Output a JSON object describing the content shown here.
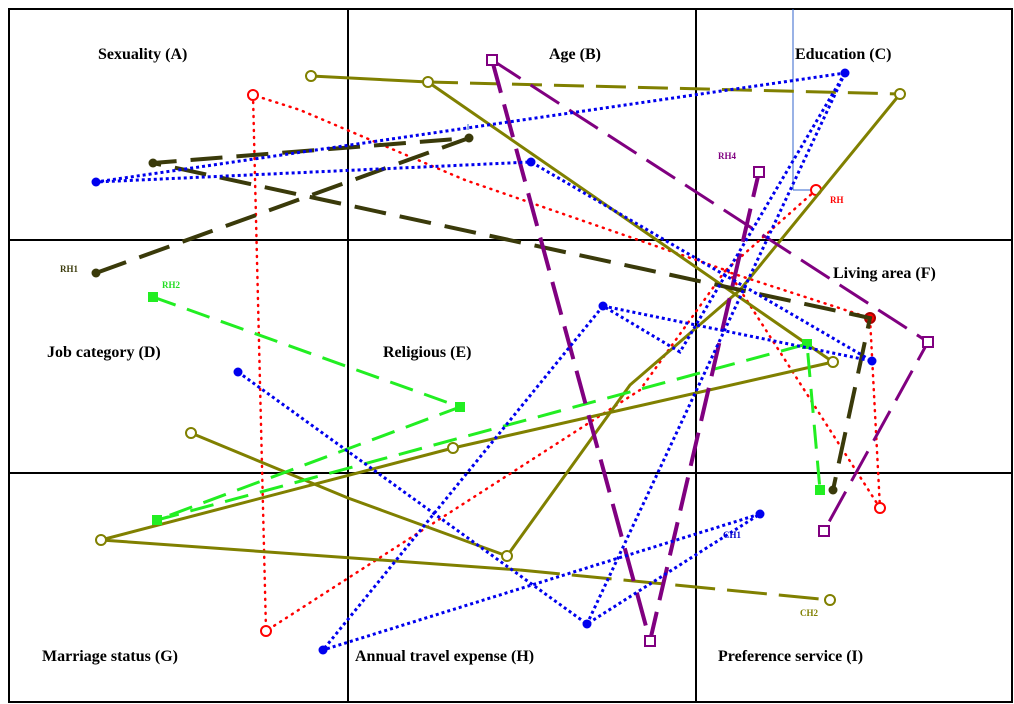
{
  "cells": [
    {
      "id": "A",
      "label": "Sexuality (A)"
    },
    {
      "id": "B",
      "label": "Age (B)"
    },
    {
      "id": "C",
      "label": "Education (C)"
    },
    {
      "id": "D",
      "label": "Job category (D)"
    },
    {
      "id": "E",
      "label": "Religious (E)"
    },
    {
      "id": "F",
      "label": "Living area (F)"
    },
    {
      "id": "G",
      "label": "Marriage status (G)"
    },
    {
      "id": "H",
      "label": "Annual travel expense (H)"
    },
    {
      "id": "I",
      "label": "Preference service (I)"
    }
  ],
  "paths": [
    {
      "label": "RH",
      "color": "#ff0000",
      "style": "dotted",
      "marker": "hollow-circle"
    },
    {
      "label": "RH1",
      "color": "#3a3a0a",
      "style": "dashed",
      "marker": "filled-circle"
    },
    {
      "label": "RH2",
      "color": "#22ee22",
      "style": "dashed",
      "marker": "filled-square"
    },
    {
      "label": "RH4",
      "color": "#800080",
      "style": "long-dashed",
      "marker": "hollow-square"
    },
    {
      "label": "CH1",
      "color": "#0000ee",
      "style": "dotted",
      "marker": "filled-circle"
    },
    {
      "label": "CH2",
      "color": "#808000",
      "style": "solid-dashed",
      "marker": "hollow-circle"
    }
  ]
}
